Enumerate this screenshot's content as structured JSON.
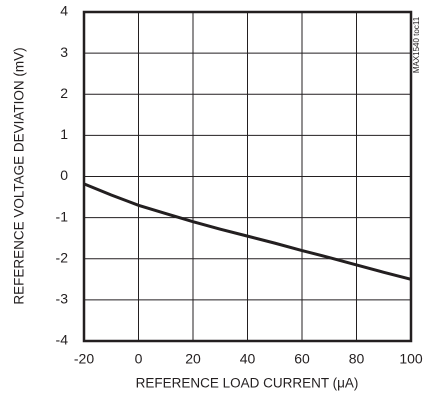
{
  "chart_data": {
    "type": "line",
    "x_label": "REFERENCE LOAD CURRENT (μA)",
    "y_label": "REFERENCE VOLTAGE DEVIATION (mV)",
    "annotation": "MAX1540 toc11",
    "series": [
      {
        "color": "#231f20",
        "x": [
          -20,
          -10,
          0,
          10,
          20,
          30,
          40,
          50,
          60,
          70,
          80,
          90,
          100
        ],
        "values": [
          -0.18,
          -0.45,
          -0.7,
          -0.9,
          -1.1,
          -1.28,
          -1.45,
          -1.62,
          -1.8,
          -1.97,
          -2.15,
          -2.33,
          -2.5
        ]
      }
    ],
    "xlim": [
      -20,
      100
    ],
    "xticks": [
      -20,
      0,
      20,
      40,
      60,
      80,
      100
    ],
    "ylim": [
      -4,
      4
    ],
    "yticks": [
      -4,
      -3,
      -2,
      -1,
      0,
      1,
      2,
      3,
      4
    ],
    "grid": true
  }
}
